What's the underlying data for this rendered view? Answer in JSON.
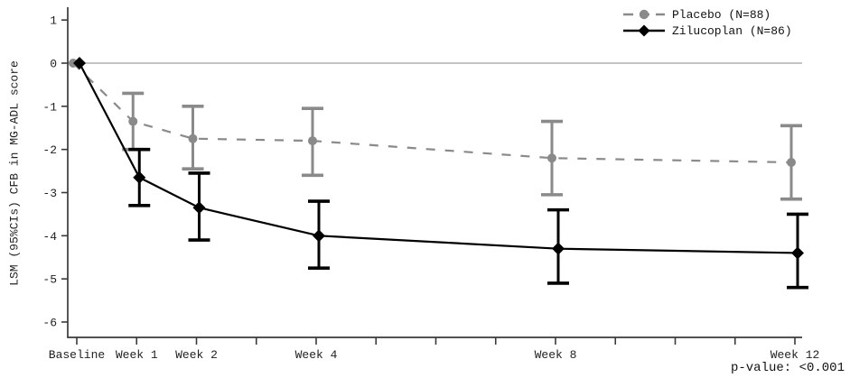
{
  "chart_data": {
    "type": "line",
    "title": "",
    "ylabel": "LSM (95%CIs) CFB in MG-ADL score",
    "xlabel": "",
    "x": [
      0,
      1,
      2,
      4,
      8,
      12
    ],
    "x_tick_weeks": [
      0,
      1,
      2,
      3,
      4,
      5,
      6,
      7,
      8,
      9,
      10,
      11,
      12
    ],
    "x_labels": [
      {
        "week": 0,
        "label": "Baseline"
      },
      {
        "week": 1,
        "label": "Week 1"
      },
      {
        "week": 2,
        "label": "Week 2"
      },
      {
        "week": 4,
        "label": "Week 4"
      },
      {
        "week": 8,
        "label": "Week 8"
      },
      {
        "week": 12,
        "label": "Week 12"
      }
    ],
    "yticks": [
      1,
      0,
      -1,
      -2,
      -3,
      -4,
      -5,
      -6
    ],
    "ylim": [
      -6.6,
      1.3
    ],
    "grid": false,
    "zero_reference_line": true,
    "legend_position": "top-right",
    "series": [
      {
        "name": "Placebo (N=88)",
        "slug": "placebo",
        "color": "#8a8a8a",
        "style": "dashed",
        "marker": "circle",
        "values": [
          0,
          -1.35,
          -1.75,
          -1.8,
          -2.2,
          -2.3
        ],
        "ci_upper": [
          null,
          -0.7,
          -1.0,
          -1.05,
          -1.35,
          -1.45
        ],
        "ci_lower": [
          null,
          -2.0,
          -2.45,
          -2.6,
          -3.05,
          -3.15
        ]
      },
      {
        "name": "Zilucoplan (N=86)",
        "slug": "zilucoplan",
        "color": "#000000",
        "style": "solid",
        "marker": "diamond",
        "values": [
          0,
          -2.65,
          -3.35,
          -4.0,
          -4.3,
          -4.4
        ],
        "ci_upper": [
          null,
          -2.0,
          -2.55,
          -3.2,
          -3.4,
          -3.5
        ],
        "ci_lower": [
          null,
          -3.3,
          -4.1,
          -4.75,
          -5.1,
          -5.2
        ]
      }
    ],
    "annotation": "p-value: <0.001",
    "colors": {
      "axis": "#3a3a3a",
      "zero_line": "#b0b0b0",
      "placebo_gray": "#8a8a8a",
      "zilucoplan_black": "#000000"
    }
  }
}
